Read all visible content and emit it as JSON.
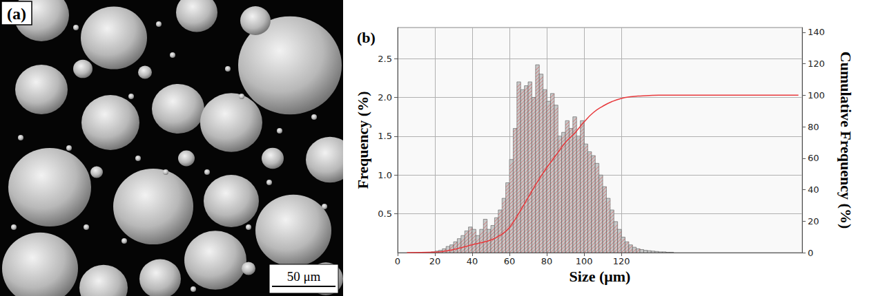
{
  "image_panel": {
    "label": "(a)",
    "scale_bar": "50 μm"
  },
  "chart_data": {
    "type": "histogram",
    "panel_label": "(b)",
    "xlabel": "Size (μm)",
    "ylabel": "Frequency (%)",
    "y2label": "Cumulative Frequency (%)",
    "bins": [
      18,
      20,
      22,
      24,
      26,
      28,
      30,
      32,
      34,
      36,
      38,
      40,
      42,
      44,
      46,
      48,
      50,
      52,
      54,
      56,
      58,
      60,
      62,
      64,
      66,
      68,
      70,
      72,
      74,
      76,
      78,
      80,
      82,
      84,
      86,
      88,
      90,
      92,
      94,
      96,
      98,
      100,
      102,
      104,
      106,
      108,
      110,
      112,
      114,
      116,
      118,
      120,
      122,
      124,
      126,
      128,
      130,
      132,
      134,
      136,
      138,
      140,
      142,
      144,
      146,
      148
    ],
    "counts": [
      0.01,
      0.02,
      0.03,
      0.05,
      0.08,
      0.1,
      0.14,
      0.18,
      0.22,
      0.28,
      0.33,
      0.3,
      0.22,
      0.3,
      0.43,
      0.3,
      0.35,
      0.45,
      0.55,
      0.7,
      0.9,
      1.2,
      1.6,
      2.2,
      2.1,
      2.15,
      2.2,
      2.0,
      2.42,
      2.3,
      2.1,
      1.95,
      2.05,
      1.9,
      1.5,
      1.55,
      1.7,
      1.6,
      1.75,
      1.5,
      1.7,
      1.4,
      1.3,
      1.25,
      1.15,
      1.0,
      0.85,
      0.7,
      0.55,
      0.4,
      0.3,
      0.2,
      0.14,
      0.1,
      0.07,
      0.05,
      0.04,
      0.03,
      0.025,
      0.02,
      0.015,
      0.01,
      0.01,
      0.005,
      0.005
    ],
    "color": "#c8c8c8",
    "series": [
      {
        "type": "line",
        "axis": "y2",
        "color": "#e8393c",
        "x": [
          5,
          20,
          30,
          40,
          50,
          55,
          60,
          65,
          70,
          75,
          80,
          85,
          90,
          95,
          100,
          105,
          110,
          115,
          120,
          125,
          130,
          140,
          160,
          200,
          215
        ],
        "values": [
          0,
          0.3,
          2,
          5,
          8,
          11,
          16,
          25,
          35,
          45,
          54,
          62,
          70,
          76,
          83,
          89,
          93,
          96,
          98,
          99,
          99.5,
          100,
          100,
          100,
          100
        ]
      }
    ],
    "xlim": [
      0,
      217
    ],
    "xticks": [
      0,
      20,
      40,
      60,
      80,
      100,
      120
    ],
    "ylim": [
      0,
      2.9
    ],
    "yticks": [
      0.5,
      {
        "value": 1,
        "label": "1.0"
      },
      1.5,
      {
        "value": 2,
        "label": "2.0"
      },
      2.5
    ],
    "y2lim": [
      0,
      143
    ],
    "y2ticks": [
      0,
      20,
      40,
      60,
      80,
      100,
      120,
      140
    ],
    "grid": true
  }
}
